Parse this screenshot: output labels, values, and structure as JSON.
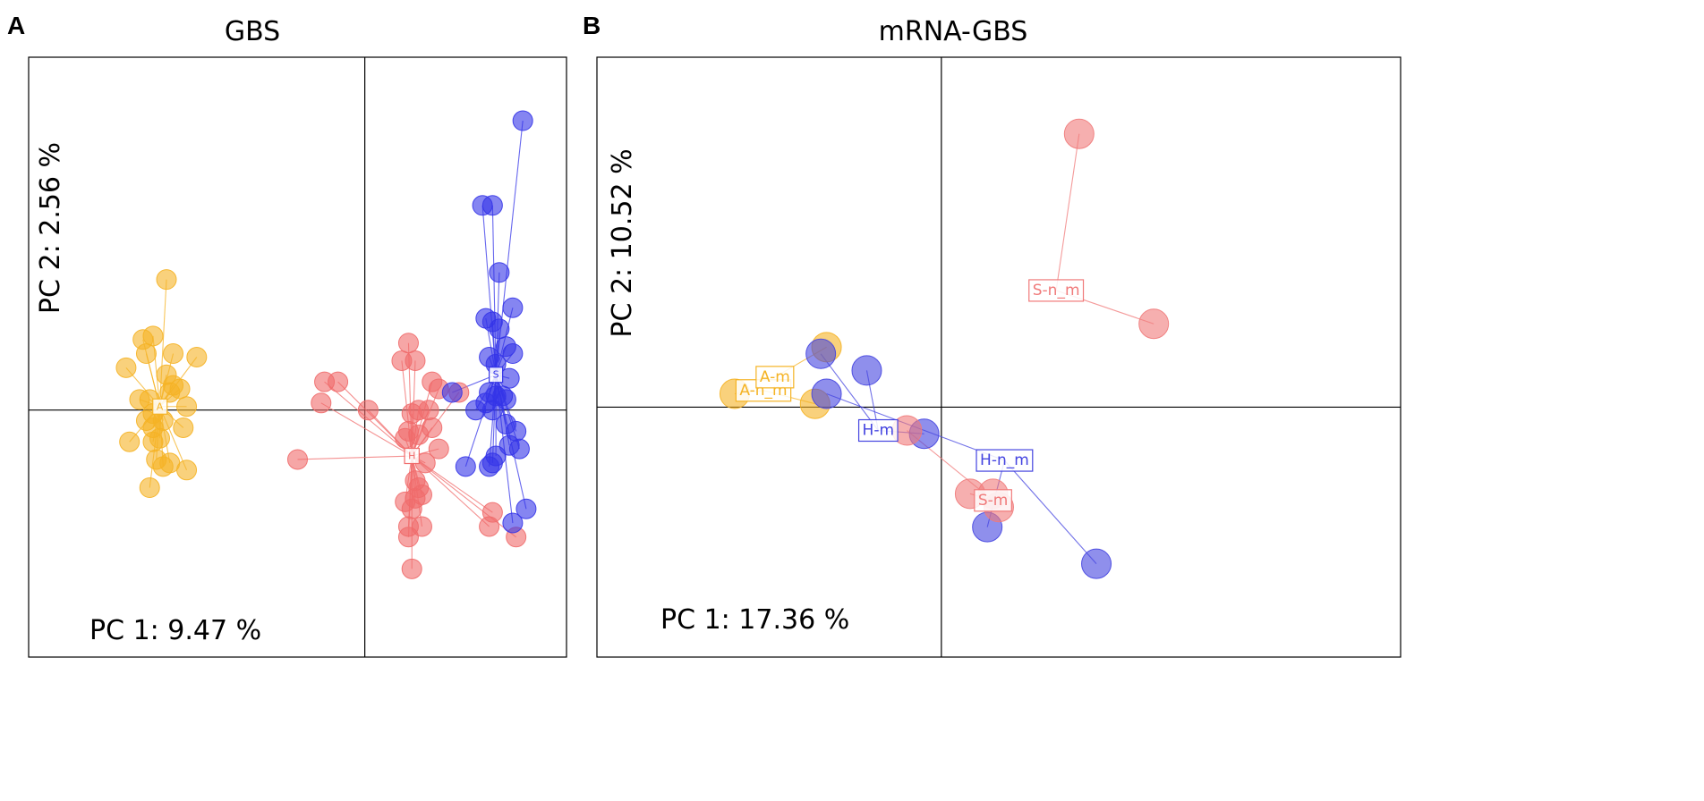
{
  "chart_data": [
    {
      "type": "scatter",
      "panel_letter": "A",
      "title": "GBS",
      "xlabel": "PC 1: 9.47 %",
      "ylabel": "PC 2: 2.56 %",
      "xlim": [
        -10,
        6
      ],
      "ylim": [
        -7,
        10
      ],
      "grid": false,
      "origin_lines": true,
      "legend": "none",
      "series": [
        {
          "name": "A",
          "label": "A",
          "color": "#f5b324",
          "centroid": [
            -6.1,
            0.1
          ],
          "points": [
            [
              -5.9,
              3.7
            ],
            [
              -6.6,
              2.0
            ],
            [
              -6.3,
              2.1
            ],
            [
              -6.5,
              1.6
            ],
            [
              -5.7,
              1.6
            ],
            [
              -5.0,
              1.5
            ],
            [
              -7.1,
              1.2
            ],
            [
              -5.9,
              1.0
            ],
            [
              -5.7,
              0.7
            ],
            [
              -6.4,
              0.3
            ],
            [
              -5.5,
              0.6
            ],
            [
              -6.7,
              0.3
            ],
            [
              -6.3,
              -0.1
            ],
            [
              -5.8,
              0.5
            ],
            [
              -6.3,
              -0.5
            ],
            [
              -5.3,
              0.1
            ],
            [
              -6.5,
              -0.3
            ],
            [
              -6.0,
              -0.3
            ],
            [
              -5.4,
              -0.5
            ],
            [
              -7.0,
              -0.9
            ],
            [
              -6.3,
              -0.9
            ],
            [
              -6.1,
              -0.8
            ],
            [
              -6.2,
              -1.4
            ],
            [
              -6.0,
              -1.6
            ],
            [
              -5.8,
              -1.5
            ],
            [
              -5.3,
              -1.7
            ],
            [
              -6.4,
              -2.2
            ]
          ]
        },
        {
          "name": "H",
          "label": "H",
          "color": "#f06b6b",
          "centroid": [
            1.4,
            -1.3
          ],
          "points": [
            [
              1.3,
              1.9
            ],
            [
              1.5,
              1.4
            ],
            [
              1.1,
              1.4
            ],
            [
              -1.2,
              0.8
            ],
            [
              -0.8,
              0.8
            ],
            [
              2.0,
              0.8
            ],
            [
              -1.3,
              0.2
            ],
            [
              2.2,
              0.6
            ],
            [
              2.8,
              0.5
            ],
            [
              0.1,
              0.0
            ],
            [
              1.6,
              0.0
            ],
            [
              1.9,
              0.0
            ],
            [
              1.4,
              -0.1
            ],
            [
              2.0,
              -0.5
            ],
            [
              1.3,
              -0.6
            ],
            [
              1.6,
              -0.7
            ],
            [
              1.2,
              -0.8
            ],
            [
              2.2,
              -1.1
            ],
            [
              -2.0,
              -1.4
            ],
            [
              1.8,
              -1.5
            ],
            [
              1.5,
              -2.0
            ],
            [
              1.6,
              -2.2
            ],
            [
              1.7,
              -2.4
            ],
            [
              1.5,
              -2.5
            ],
            [
              3.8,
              -2.9
            ],
            [
              1.2,
              -2.6
            ],
            [
              1.4,
              -2.8
            ],
            [
              3.7,
              -3.3
            ],
            [
              1.3,
              -3.3
            ],
            [
              1.7,
              -3.3
            ],
            [
              4.5,
              -3.6
            ],
            [
              1.3,
              -3.6
            ],
            [
              1.4,
              -4.5
            ]
          ]
        },
        {
          "name": "S",
          "label": "S",
          "color": "#3434e8",
          "centroid": [
            3.9,
            1.0
          ],
          "points": [
            [
              4.7,
              8.2
            ],
            [
              3.5,
              5.8
            ],
            [
              3.8,
              5.8
            ],
            [
              4.0,
              3.9
            ],
            [
              4.4,
              2.9
            ],
            [
              3.6,
              2.6
            ],
            [
              4.0,
              2.3
            ],
            [
              3.8,
              2.5
            ],
            [
              4.2,
              1.8
            ],
            [
              4.4,
              1.6
            ],
            [
              3.7,
              1.5
            ],
            [
              3.9,
              1.3
            ],
            [
              4.3,
              0.9
            ],
            [
              2.6,
              0.5
            ],
            [
              3.7,
              0.5
            ],
            [
              3.9,
              0.4
            ],
            [
              4.1,
              0.4
            ],
            [
              3.6,
              0.2
            ],
            [
              3.8,
              0.0
            ],
            [
              4.2,
              0.3
            ],
            [
              3.3,
              0.0
            ],
            [
              4.2,
              -0.4
            ],
            [
              4.5,
              -0.6
            ],
            [
              4.3,
              -1.0
            ],
            [
              4.6,
              -1.1
            ],
            [
              3.9,
              -1.3
            ],
            [
              3.8,
              -1.5
            ],
            [
              3.0,
              -1.6
            ],
            [
              3.7,
              -1.6
            ],
            [
              4.8,
              -2.8
            ],
            [
              4.4,
              -3.2
            ]
          ]
        }
      ]
    },
    {
      "type": "scatter",
      "panel_letter": "B",
      "title": "mRNA-GBS",
      "xlabel": "PC 1: 17.36 %",
      "ylabel": "PC 2: 10.52 %",
      "xlim": [
        -6,
        8
      ],
      "ylim": [
        -7.5,
        10.5
      ],
      "grid": false,
      "origin_lines": true,
      "legend": "none",
      "series": [
        {
          "name": "A-n_m",
          "label": "A-n_m",
          "color": "#f5b324",
          "centroid": [
            -3.1,
            0.5
          ],
          "points": [
            [
              -3.6,
              0.4
            ],
            [
              -2.2,
              0.1
            ]
          ]
        },
        {
          "name": "A-m",
          "label": "A-m",
          "color": "#f5b324",
          "centroid": [
            -2.9,
            0.9
          ],
          "points": [
            [
              -2.0,
              1.8
            ]
          ]
        },
        {
          "name": "H-m",
          "label": "H-m",
          "color": "#4444e0",
          "centroid": [
            -1.1,
            -0.7
          ],
          "points": [
            [
              -2.1,
              1.6
            ],
            [
              -1.3,
              1.1
            ],
            [
              -0.3,
              -0.8
            ]
          ]
        },
        {
          "name": "H-n_m",
          "label": "H-n_m",
          "color": "#4444e0",
          "centroid": [
            1.1,
            -1.6
          ],
          "points": [
            [
              -2.0,
              0.4
            ],
            [
              0.8,
              -3.6
            ],
            [
              2.7,
              -4.7
            ]
          ]
        },
        {
          "name": "S-m",
          "label": "S-m",
          "color": "#f07a7a",
          "centroid": [
            0.9,
            -2.8
          ],
          "points": [
            [
              -0.6,
              -0.7
            ],
            [
              0.5,
              -2.6
            ],
            [
              0.9,
              -2.6
            ],
            [
              1.0,
              -3.0
            ]
          ]
        },
        {
          "name": "S-n_m",
          "label": "S-n_m",
          "color": "#f07a7a",
          "centroid": [
            2.0,
            3.5
          ],
          "points": [
            [
              2.4,
              8.2
            ],
            [
              3.7,
              2.5
            ]
          ]
        }
      ]
    }
  ]
}
